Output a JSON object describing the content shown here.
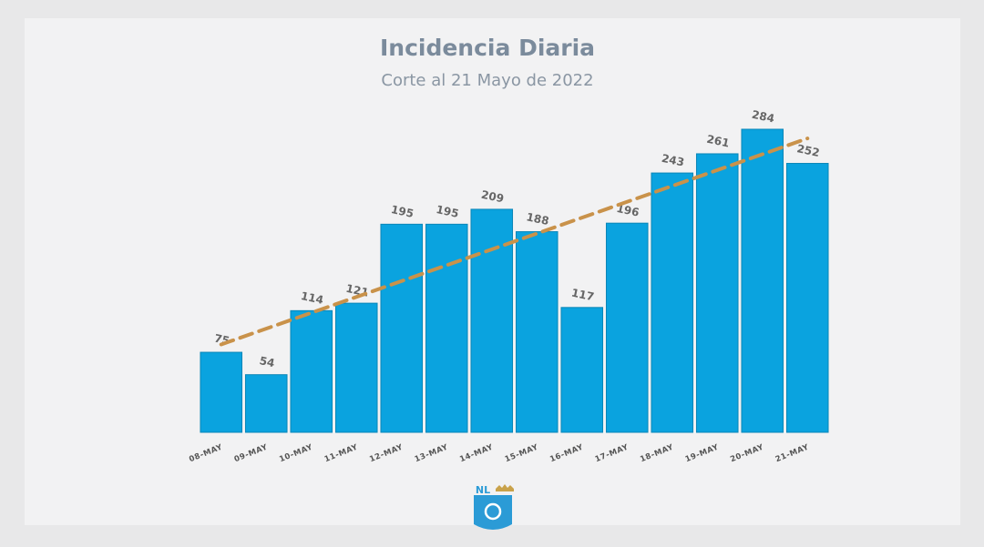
{
  "chart_data": {
    "type": "bar",
    "title": "Incidencia Diaria",
    "subtitle": "Corte al 21 Mayo de 2022",
    "categories": [
      "08-MAY",
      "09-MAY",
      "10-MAY",
      "11-MAY",
      "12-MAY",
      "13-MAY",
      "14-MAY",
      "15-MAY",
      "16-MAY",
      "17-MAY",
      "18-MAY",
      "19-MAY",
      "20-MAY",
      "21-MAY"
    ],
    "values": [
      75,
      54,
      114,
      121,
      195,
      195,
      209,
      188,
      117,
      196,
      243,
      261,
      284,
      252
    ],
    "color": "#0aa3df",
    "trendline": {
      "type": "linear",
      "color": "#c9924a"
    }
  },
  "logo": "NL"
}
